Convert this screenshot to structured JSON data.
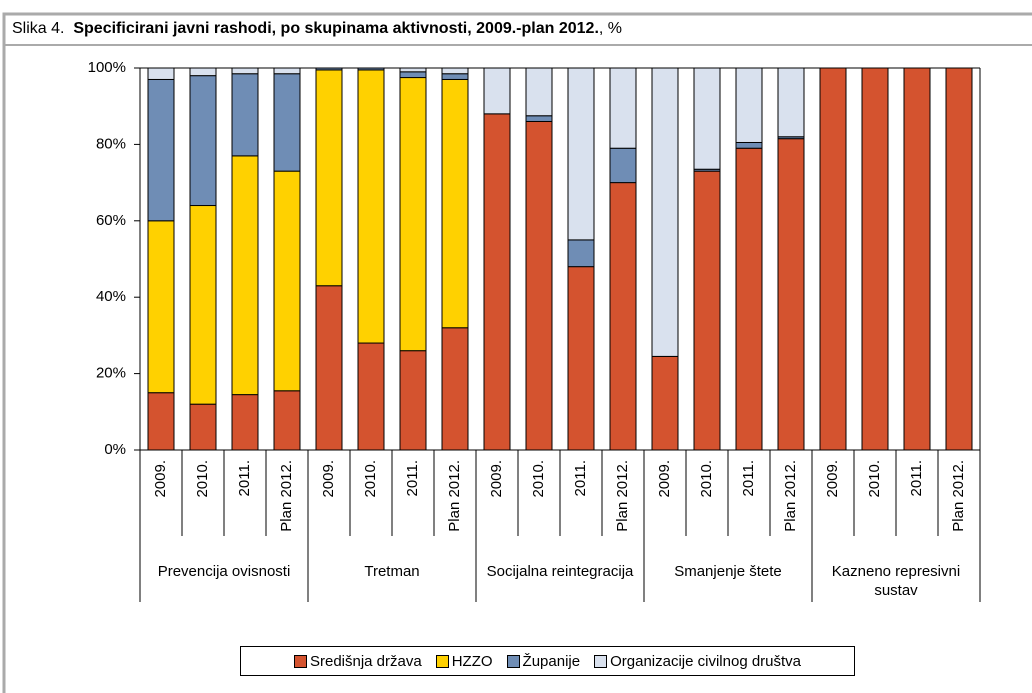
{
  "chart_data": {
    "type": "bar",
    "stacked": true,
    "title_prefix": "Slika 4.",
    "title": "Specificirani javni rashodi, po skupinama aktivnosti, 2009.-plan 2012.",
    "title_suffix": ", %",
    "categories": [
      "2009.",
      "2010.",
      "2011.",
      "Plan 2012.",
      "2009.",
      "2010.",
      "2011.",
      "Plan 2012.",
      "2009.",
      "2010.",
      "2011.",
      "Plan 2012.",
      "2009.",
      "2010.",
      "2011.",
      "Plan 2012.",
      "2009.",
      "2010.",
      "2011.",
      "Plan 2012."
    ],
    "groups": [
      "Prevencija ovisnosti",
      "Tretman",
      "Socijalna reintegracija",
      "Smanjenje štete",
      "Kazneno represivni sustav"
    ],
    "series": [
      {
        "name": "Središnja država",
        "color": "#d4532f",
        "values": [
          15,
          12,
          14.5,
          15.5,
          43,
          28,
          26,
          32,
          88,
          86,
          48,
          70,
          24.5,
          73,
          79,
          81.5,
          100,
          100,
          100,
          100
        ]
      },
      {
        "name": "HZZO",
        "color": "#ffd100",
        "values": [
          45,
          52,
          62.5,
          57.5,
          56.5,
          71.5,
          71.5,
          65,
          0,
          0,
          0,
          0,
          0,
          0,
          0,
          0,
          0,
          0,
          0,
          0
        ]
      },
      {
        "name": "Županije",
        "color": "#6f8db5",
        "values": [
          37,
          34,
          21.5,
          25.5,
          0.5,
          0.5,
          1.5,
          1.5,
          0,
          1.5,
          7,
          9,
          0,
          0.5,
          1.5,
          0.5,
          0,
          0,
          0,
          0
        ]
      },
      {
        "name": "Organizacije civilnog društva",
        "color": "#d9e1ee",
        "values": [
          3,
          2,
          1.5,
          1.5,
          0,
          0,
          1,
          1.5,
          12,
          12.5,
          45,
          21,
          75.5,
          26.5,
          19.5,
          18,
          0,
          0,
          0,
          0
        ]
      }
    ],
    "ylim": [
      0,
      100
    ],
    "yticks": [
      {
        "value": 0,
        "label": "0%"
      },
      {
        "value": 20,
        "label": "20%"
      },
      {
        "value": 40,
        "label": "40%"
      },
      {
        "value": 60,
        "label": "60%"
      },
      {
        "value": 80,
        "label": "80%"
      },
      {
        "value": 100,
        "label": "100%"
      }
    ],
    "legend": "bottom"
  }
}
